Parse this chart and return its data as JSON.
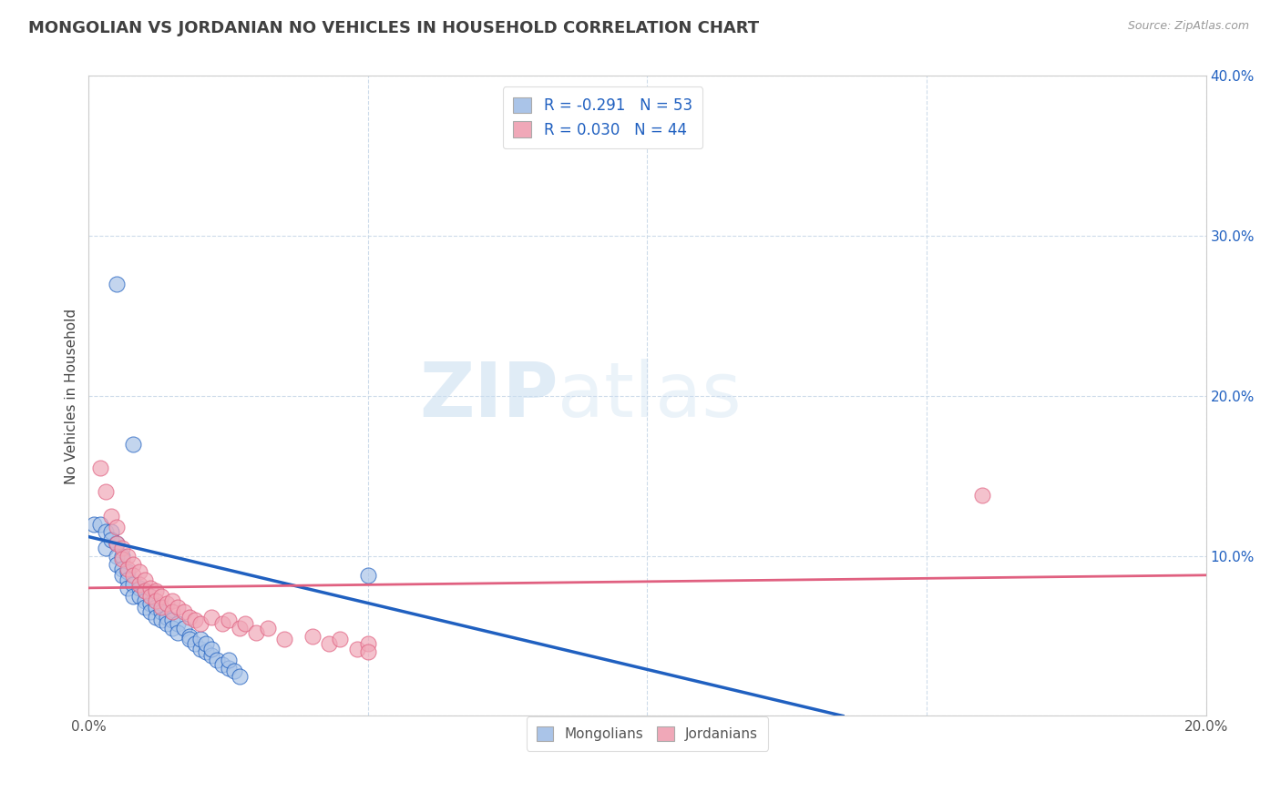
{
  "title": "MONGOLIAN VS JORDANIAN NO VEHICLES IN HOUSEHOLD CORRELATION CHART",
  "source": "Source: ZipAtlas.com",
  "ylabel": "No Vehicles in Household",
  "watermark_zip": "ZIP",
  "watermark_atlas": "atlas",
  "legend_mongolian_R": "R = -0.291",
  "legend_mongolian_N": "N = 53",
  "legend_jordanian_R": "R = 0.030",
  "legend_jordanian_N": "N = 44",
  "mongolian_color": "#aac4e8",
  "jordanian_color": "#f0a8b8",
  "mongolian_line_color": "#2060c0",
  "jordanian_line_color": "#e06080",
  "background_color": "#ffffff",
  "grid_color": "#c8d8e8",
  "xlim": [
    0.0,
    0.2
  ],
  "ylim": [
    0.0,
    0.4
  ],
  "mongolian_x": [
    0.005,
    0.001,
    0.002,
    0.003,
    0.003,
    0.004,
    0.004,
    0.005,
    0.005,
    0.005,
    0.006,
    0.006,
    0.006,
    0.007,
    0.007,
    0.007,
    0.008,
    0.008,
    0.009,
    0.009,
    0.01,
    0.01,
    0.01,
    0.011,
    0.011,
    0.012,
    0.012,
    0.013,
    0.013,
    0.014,
    0.014,
    0.015,
    0.015,
    0.016,
    0.016,
    0.017,
    0.018,
    0.018,
    0.019,
    0.02,
    0.02,
    0.021,
    0.021,
    0.022,
    0.022,
    0.023,
    0.024,
    0.025,
    0.025,
    0.026,
    0.027,
    0.05,
    0.008
  ],
  "mongolian_y": [
    0.27,
    0.12,
    0.12,
    0.115,
    0.105,
    0.115,
    0.11,
    0.108,
    0.1,
    0.095,
    0.1,
    0.092,
    0.088,
    0.09,
    0.085,
    0.08,
    0.082,
    0.075,
    0.08,
    0.075,
    0.078,
    0.072,
    0.068,
    0.07,
    0.065,
    0.068,
    0.062,
    0.065,
    0.06,
    0.062,
    0.058,
    0.06,
    0.055,
    0.058,
    0.052,
    0.055,
    0.05,
    0.048,
    0.045,
    0.042,
    0.048,
    0.04,
    0.045,
    0.038,
    0.042,
    0.035,
    0.032,
    0.03,
    0.035,
    0.028,
    0.025,
    0.088,
    0.17
  ],
  "jordanian_x": [
    0.002,
    0.003,
    0.004,
    0.005,
    0.005,
    0.006,
    0.006,
    0.007,
    0.007,
    0.008,
    0.008,
    0.009,
    0.009,
    0.01,
    0.01,
    0.011,
    0.011,
    0.012,
    0.012,
    0.013,
    0.013,
    0.014,
    0.015,
    0.015,
    0.016,
    0.017,
    0.018,
    0.019,
    0.02,
    0.022,
    0.024,
    0.025,
    0.027,
    0.028,
    0.03,
    0.032,
    0.035,
    0.04,
    0.043,
    0.045,
    0.048,
    0.05,
    0.05,
    0.16
  ],
  "jordanian_y": [
    0.155,
    0.14,
    0.125,
    0.118,
    0.108,
    0.105,
    0.098,
    0.1,
    0.092,
    0.095,
    0.088,
    0.09,
    0.082,
    0.085,
    0.078,
    0.08,
    0.075,
    0.078,
    0.072,
    0.075,
    0.068,
    0.07,
    0.072,
    0.065,
    0.068,
    0.065,
    0.062,
    0.06,
    0.058,
    0.062,
    0.058,
    0.06,
    0.055,
    0.058,
    0.052,
    0.055,
    0.048,
    0.05,
    0.045,
    0.048,
    0.042,
    0.045,
    0.04,
    0.138
  ],
  "yticks": [
    0.0,
    0.1,
    0.2,
    0.3,
    0.4
  ],
  "ytick_labels": [
    "",
    "10.0%",
    "20.0%",
    "30.0%",
    "40.0%"
  ],
  "xticks": [
    0.0,
    0.05,
    0.1,
    0.15,
    0.2
  ],
  "xtick_labels": [
    "0.0%",
    "",
    "",
    "",
    "20.0%"
  ],
  "mongo_line_x0": 0.0,
  "mongo_line_y0": 0.112,
  "mongo_line_x1": 0.135,
  "mongo_line_y1": 0.0,
  "jordan_line_x0": 0.0,
  "jordan_line_y0": 0.08,
  "jordan_line_x1": 0.2,
  "jordan_line_y1": 0.088
}
